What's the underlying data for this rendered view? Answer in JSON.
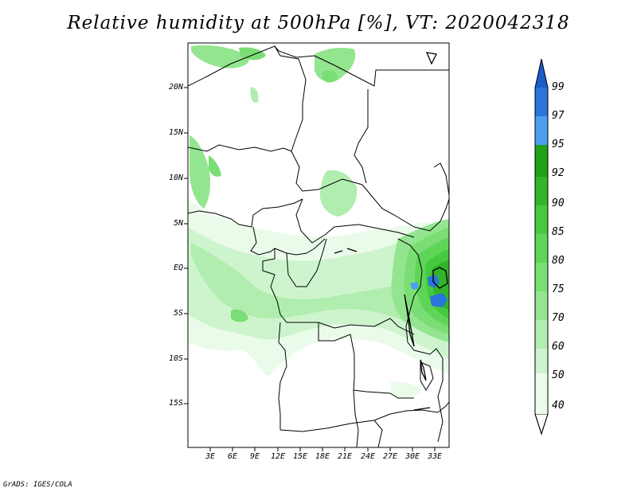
{
  "title": "Relative humidity at 500hPa [%], VT: 2020042318",
  "credit": "GrADS: IGES/COLA",
  "map": {
    "lat_labels": [
      "20N",
      "15N",
      "10N",
      "5N",
      "EQ",
      "5S",
      "10S",
      "15S"
    ],
    "lon_labels": [
      "3E",
      "6E",
      "9E",
      "12E",
      "15E",
      "18E",
      "21E",
      "24E",
      "27E",
      "30E",
      "33E"
    ]
  },
  "colorbar": {
    "levels": [
      "40",
      "50",
      "60",
      "70",
      "75",
      "80",
      "85",
      "90",
      "92",
      "95",
      "97",
      "99"
    ],
    "colors": [
      "#ebfbea",
      "#cef4cd",
      "#b0edae",
      "#93e58f",
      "#7ade74",
      "#5fd558",
      "#45c93e",
      "#32b52a",
      "#1fa017",
      "#108d0a",
      "#4d9ef0",
      "#2a74da",
      "#1a5cc8"
    ]
  }
}
